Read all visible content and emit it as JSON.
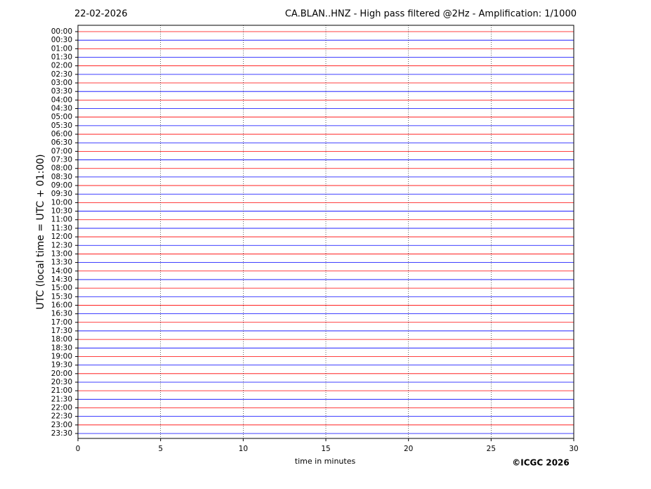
{
  "chart_data": {
    "type": "helicorder",
    "title_left": "22-02-2026",
    "title": "CA.BLAN..HNZ - High pass filtered @2Hz - Amplification: 1/1000",
    "xlabel": "time in minutes",
    "ylabel": "UTC (local time = UTC + 01:00)",
    "copyright": "©ICGC 2026",
    "xlim": [
      0,
      30
    ],
    "xticks": [
      0,
      5,
      10,
      15,
      20,
      25,
      30
    ],
    "grid": true,
    "trace_colors": [
      "#ff0000",
      "#0000ff"
    ],
    "categories": [
      "00:00",
      "00:30",
      "01:00",
      "01:30",
      "02:00",
      "02:30",
      "03:00",
      "03:30",
      "04:00",
      "04:30",
      "05:00",
      "05:30",
      "06:00",
      "06:30",
      "07:00",
      "07:30",
      "08:00",
      "08:30",
      "09:00",
      "09:30",
      "10:00",
      "10:30",
      "11:00",
      "11:30",
      "12:00",
      "12:30",
      "13:00",
      "13:30",
      "14:00",
      "14:30",
      "15:00",
      "15:30",
      "16:00",
      "16:30",
      "17:00",
      "17:30",
      "18:00",
      "18:30",
      "19:00",
      "19:30",
      "20:00",
      "20:30",
      "21:00",
      "21:30",
      "22:00",
      "22:30",
      "23:00",
      "23:30"
    ]
  }
}
